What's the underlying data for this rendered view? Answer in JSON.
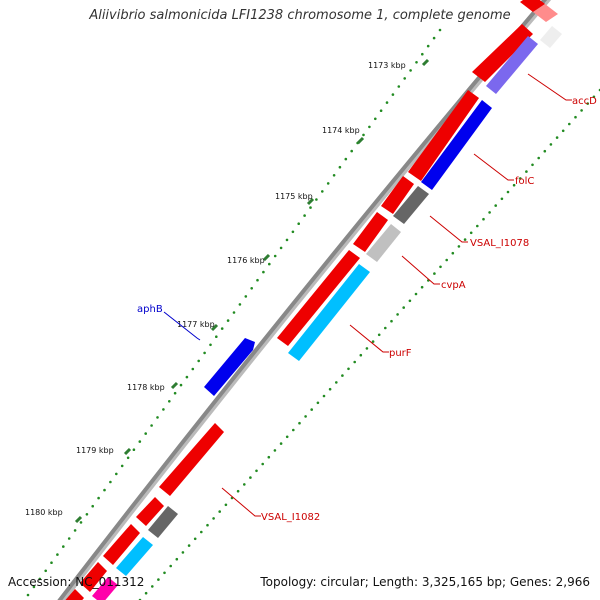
{
  "title": "Aliivibrio salmonicida LFI1238 chromosome 1, complete genome",
  "accession_text": "Accession: NC_011312",
  "summary_text": "Topology: circular; Length: 3,325,165 bp; Genes: 2,966",
  "ticks": [
    {
      "label": "1173 kbp"
    },
    {
      "label": "1174 kbp"
    },
    {
      "label": "1175 kbp"
    },
    {
      "label": "1176 kbp"
    },
    {
      "label": "1177 kbp"
    },
    {
      "label": "1178 kbp"
    },
    {
      "label": "1179 kbp"
    },
    {
      "label": "1180 kbp"
    }
  ],
  "gene_labels": [
    {
      "id": "accD",
      "text": "accD",
      "color": "#cc0000"
    },
    {
      "id": "folC",
      "text": "folC",
      "color": "#cc0000"
    },
    {
      "id": "vsal-i1078",
      "text": "VSAL_I1078",
      "color": "#cc0000"
    },
    {
      "id": "cvpA",
      "text": "cvpA",
      "color": "#cc0000"
    },
    {
      "id": "purF",
      "text": "purF",
      "color": "#cc0000"
    },
    {
      "id": "aphB",
      "text": "aphB",
      "color": "#0000cc"
    },
    {
      "id": "vsal-i1082",
      "text": "VSAL_I1082",
      "color": "#cc0000"
    }
  ],
  "colors": {
    "backbone": "#888888",
    "cds_forward": "#ee0000",
    "gene_folC": "#0000ee",
    "gene_accD": "#7b68ee",
    "gene_grey": "#666666",
    "gene_lightgrey": "#c0c0c0",
    "gene_cyan": "#00bfff",
    "gene_pink": "#ff8c8c",
    "gene_magenta": "#ff00aa",
    "dots": "#228B22"
  }
}
